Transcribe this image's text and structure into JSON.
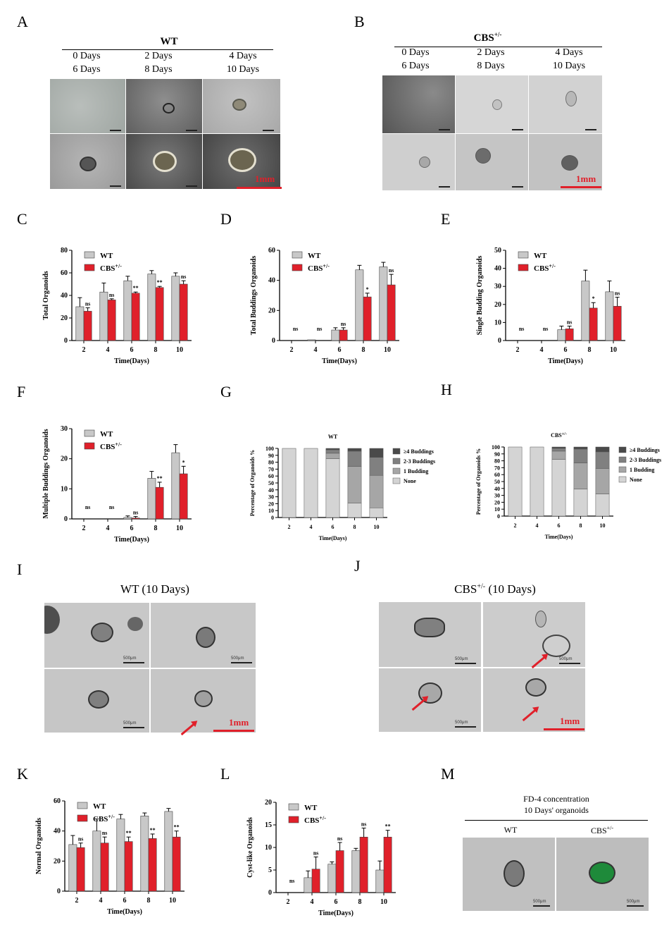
{
  "panel_letters": [
    "A",
    "B",
    "C",
    "D",
    "E",
    "F",
    "G",
    "H",
    "I",
    "J",
    "K",
    "L",
    "M"
  ],
  "panel_a": {
    "title": "WT",
    "days_row1": [
      "0 Days",
      "2 Days",
      "4 Days"
    ],
    "days_row2": [
      "6 Days",
      "8 Days",
      "10 Days"
    ],
    "scale": "1mm"
  },
  "panel_b": {
    "title_base": "CBS",
    "title_sup": "+/-",
    "days_row1": [
      "0 Days",
      "2 Days",
      "4 Days"
    ],
    "days_row2": [
      "6 Days",
      "8 Days",
      "10 Days"
    ],
    "scale": "1mm"
  },
  "panel_i": {
    "title": "WT (10 Days)",
    "scale_small": "500μm",
    "scale": "1mm"
  },
  "panel_j": {
    "title_base": "CBS",
    "title_sup": "+/-",
    "title_rest": " (10 Days)",
    "scale_small": "500μm",
    "scale": "1mm"
  },
  "panel_m": {
    "title_line1": "FD-4 concentration",
    "title_line2": "10 Days' organoids",
    "col1": "WT",
    "col2_base": "CBS",
    "col2_sup": "+/-",
    "scale_small": "500μm"
  },
  "colors": {
    "wt": "#c8c8c8",
    "cbs": "#e0202a",
    "scale_red": "#e0202a",
    "g_none": "#d4d4d4",
    "g_one": "#a6a6a6",
    "g_two": "#808080",
    "g_four": "#4a4a4a"
  },
  "chart_data": [
    {
      "panel": "C",
      "type": "bar",
      "ylabel": "Total Organoids",
      "xlabel": "Time(Days)",
      "ylim": [
        0,
        80
      ],
      "yticks": [
        0,
        20,
        40,
        60,
        80
      ],
      "categories": [
        "2",
        "4",
        "6",
        "8",
        "10"
      ],
      "series": [
        {
          "name": "WT",
          "values": [
            30,
            43,
            53,
            59,
            57
          ],
          "errors": [
            8,
            8,
            4,
            3,
            3
          ]
        },
        {
          "name": "CBS+/-",
          "values": [
            26,
            36,
            42,
            47,
            50
          ],
          "errors": [
            3,
            1,
            1,
            1,
            3
          ]
        }
      ],
      "significance": [
        "ns",
        "ns",
        "**",
        "**",
        "ns"
      ]
    },
    {
      "panel": "D",
      "type": "bar",
      "ylabel": "Total Buddings Organoids",
      "xlabel": "Time(Days)",
      "ylim": [
        0,
        60
      ],
      "yticks": [
        0,
        20,
        40,
        60
      ],
      "categories": [
        "2",
        "4",
        "6",
        "8",
        "10"
      ],
      "series": [
        {
          "name": "WT",
          "values": [
            0,
            0.5,
            7,
            47,
            49
          ],
          "errors": [
            0,
            0,
            1.5,
            3,
            3
          ]
        },
        {
          "name": "CBS+/-",
          "values": [
            0,
            0,
            7,
            29,
            37
          ],
          "errors": [
            0,
            0,
            1.5,
            2.5,
            7
          ]
        }
      ],
      "significance": [
        "ns",
        "ns",
        "ns",
        "*",
        "ns"
      ]
    },
    {
      "panel": "E",
      "type": "bar",
      "ylabel": "Single Budding Organoids",
      "xlabel": "Time(Days)",
      "ylim": [
        0,
        50
      ],
      "yticks": [
        0,
        10,
        20,
        30,
        40,
        50
      ],
      "categories": [
        "2",
        "4",
        "6",
        "8",
        "10"
      ],
      "series": [
        {
          "name": "WT",
          "values": [
            0,
            0,
            6,
            33,
            27
          ],
          "errors": [
            0,
            0,
            2,
            6,
            6
          ]
        },
        {
          "name": "CBS+/-",
          "values": [
            0,
            0,
            6.5,
            18,
            19
          ],
          "errors": [
            0,
            0,
            1.5,
            3,
            5
          ]
        }
      ],
      "significance": [
        "ns",
        "ns",
        "ns",
        "*",
        "ns"
      ]
    },
    {
      "panel": "F",
      "type": "bar",
      "ylabel": "Multiple Buddings Organoids",
      "xlabel": "Time(Days)",
      "ylim": [
        0,
        30
      ],
      "yticks": [
        0,
        10,
        20,
        30
      ],
      "categories": [
        "2",
        "4",
        "6",
        "8",
        "10"
      ],
      "series": [
        {
          "name": "WT",
          "values": [
            0,
            0,
            0.5,
            13.5,
            22
          ],
          "errors": [
            0,
            0,
            0.5,
            2.3,
            2.7
          ]
        },
        {
          "name": "CBS+/-",
          "values": [
            0,
            0,
            0.3,
            10.5,
            15
          ],
          "errors": [
            0,
            0,
            0.5,
            1.7,
            2.5
          ]
        }
      ],
      "significance": [
        "ns",
        "ns",
        "ns",
        "**",
        "*"
      ]
    },
    {
      "panel": "G",
      "type": "bar",
      "stacked": true,
      "title": "WT",
      "ylabel": "Percentage of Organoids %",
      "xlabel": "Time(Days)",
      "ylim": [
        0,
        100
      ],
      "yticks": [
        0,
        10,
        20,
        30,
        40,
        50,
        60,
        70,
        80,
        90,
        100
      ],
      "categories": [
        "2",
        "4",
        "6",
        "8",
        "10"
      ],
      "series": [
        {
          "name": "None",
          "values": [
            100,
            100,
            85,
            21,
            14
          ]
        },
        {
          "name": "1 Budding",
          "values": [
            0,
            0,
            8,
            53,
            47
          ]
        },
        {
          "name": "2-3 Buddings",
          "values": [
            0,
            0,
            5,
            22,
            26
          ]
        },
        {
          "name": "≥4 Buddings",
          "values": [
            0,
            0,
            2,
            4,
            13
          ]
        }
      ]
    },
    {
      "panel": "H",
      "type": "bar",
      "stacked": true,
      "title": "CBS+/-",
      "ylabel": "Percentage of Organoids %",
      "xlabel": "Time(Days)",
      "ylim": [
        0,
        100
      ],
      "yticks": [
        0,
        10,
        20,
        30,
        40,
        50,
        60,
        70,
        80,
        90,
        100
      ],
      "categories": [
        "2",
        "4",
        "6",
        "8",
        "10"
      ],
      "series": [
        {
          "name": "None",
          "values": [
            100,
            100,
            82,
            39,
            32
          ]
        },
        {
          "name": "1 Budding",
          "values": [
            0,
            0,
            12,
            38,
            37
          ]
        },
        {
          "name": "2-3 Buddings",
          "values": [
            0,
            0,
            4,
            20,
            24
          ]
        },
        {
          "name": "≥4 Buddings",
          "values": [
            0,
            0,
            2,
            3,
            7
          ]
        }
      ]
    },
    {
      "panel": "K",
      "type": "bar",
      "ylabel": "Normal Organoids",
      "xlabel": "Time(Days)",
      "ylim": [
        0,
        60
      ],
      "yticks": [
        0,
        20,
        40,
        60
      ],
      "categories": [
        "2",
        "4",
        "6",
        "8",
        "10"
      ],
      "series": [
        {
          "name": "WT",
          "values": [
            31,
            40,
            48,
            50,
            53
          ],
          "errors": [
            6,
            8,
            3,
            2,
            2
          ]
        },
        {
          "name": "CBS+/-",
          "values": [
            29,
            32,
            33,
            35,
            36
          ],
          "errors": [
            3,
            4,
            3,
            3,
            4
          ]
        }
      ],
      "significance": [
        "ns",
        "ns",
        "**",
        "**",
        "**"
      ]
    },
    {
      "panel": "L",
      "type": "bar",
      "ylabel": "Cyst-like Organoids",
      "xlabel": "Time(Days)",
      "ylim": [
        0,
        20
      ],
      "yticks": [
        0,
        5,
        10,
        15,
        20
      ],
      "categories": [
        "2",
        "4",
        "6",
        "8",
        "10"
      ],
      "series": [
        {
          "name": "WT",
          "values": [
            0,
            3.3,
            6.3,
            9.3,
            5
          ],
          "errors": [
            0,
            1.5,
            0.5,
            0.5,
            2
          ]
        },
        {
          "name": "CBS+/-",
          "values": [
            0,
            5.2,
            9.3,
            12.3,
            12.3
          ],
          "errors": [
            0,
            2.7,
            1.8,
            2,
            1.5
          ]
        }
      ],
      "significance": [
        "ns",
        "ns",
        "ns",
        "ns",
        "**"
      ]
    }
  ]
}
